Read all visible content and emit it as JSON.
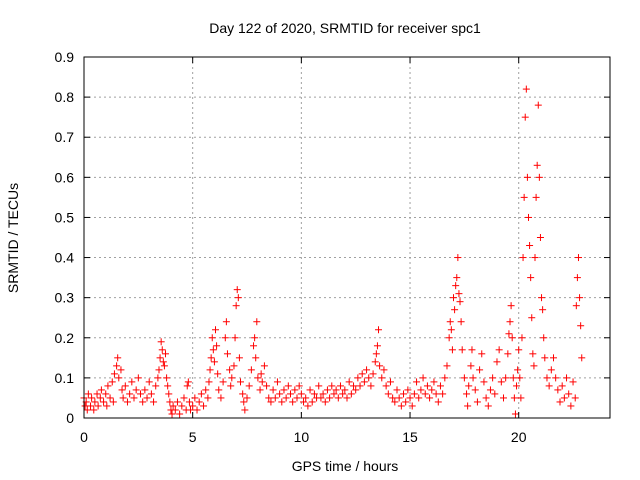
{
  "chart_data": {
    "type": "scatter",
    "title": "Day 122 of 2020, SRMTID for receiver spc1",
    "xlabel": "GPS time / hours",
    "ylabel": "SRMTID / TECUs",
    "xlim": [
      0,
      24.2
    ],
    "ylim": [
      0,
      0.9
    ],
    "xticks": [
      0,
      5,
      10,
      15,
      20
    ],
    "xtick_labels": [
      "0",
      "5",
      "10",
      "15",
      "20"
    ],
    "yticks": [
      0,
      0.1,
      0.2,
      0.3,
      0.4,
      0.5,
      0.6,
      0.7,
      0.8,
      0.9
    ],
    "ytick_labels": [
      "0",
      "0.1",
      "0.2",
      "0.3",
      "0.4",
      "0.5",
      "0.6",
      "0.7",
      "0.8",
      "0.9"
    ],
    "grid": true,
    "marker": "+",
    "marker_color": "#ff0000",
    "series": [
      {
        "name": "spc1",
        "points": [
          [
            0.0,
            0.05
          ],
          [
            0.05,
            0.03
          ],
          [
            0.1,
            0.04
          ],
          [
            0.15,
            0.02
          ],
          [
            0.2,
            0.06
          ],
          [
            0.3,
            0.03
          ],
          [
            0.35,
            0.05
          ],
          [
            0.45,
            0.02
          ],
          [
            0.5,
            0.04
          ],
          [
            0.6,
            0.06
          ],
          [
            0.65,
            0.03
          ],
          [
            0.75,
            0.05
          ],
          [
            0.8,
            0.07
          ],
          [
            0.9,
            0.04
          ],
          [
            1.0,
            0.06
          ],
          [
            1.05,
            0.03
          ],
          [
            1.1,
            0.08
          ],
          [
            1.2,
            0.05
          ],
          [
            1.3,
            0.09
          ],
          [
            1.35,
            0.04
          ],
          [
            1.4,
            0.11
          ],
          [
            1.5,
            0.13
          ],
          [
            1.55,
            0.15
          ],
          [
            1.6,
            0.1
          ],
          [
            1.7,
            0.12
          ],
          [
            1.75,
            0.07
          ],
          [
            1.8,
            0.05
          ],
          [
            1.9,
            0.08
          ],
          [
            2.0,
            0.04
          ],
          [
            2.1,
            0.06
          ],
          [
            2.2,
            0.09
          ],
          [
            2.3,
            0.05
          ],
          [
            2.4,
            0.07
          ],
          [
            2.5,
            0.1
          ],
          [
            2.6,
            0.06
          ],
          [
            2.7,
            0.04
          ],
          [
            2.8,
            0.07
          ],
          [
            2.9,
            0.05
          ],
          [
            3.0,
            0.09
          ],
          [
            3.1,
            0.06
          ],
          [
            3.2,
            0.04
          ],
          [
            3.3,
            0.08
          ],
          [
            3.4,
            0.1
          ],
          [
            3.45,
            0.12
          ],
          [
            3.5,
            0.15
          ],
          [
            3.55,
            0.19
          ],
          [
            3.6,
            0.17
          ],
          [
            3.65,
            0.14
          ],
          [
            3.7,
            0.13
          ],
          [
            3.75,
            0.16
          ],
          [
            3.8,
            0.1
          ],
          [
            3.85,
            0.08
          ],
          [
            3.9,
            0.06
          ],
          [
            3.95,
            0.04
          ],
          [
            4.0,
            0.02
          ],
          [
            4.05,
            0.01
          ],
          [
            4.1,
            0.03
          ],
          [
            4.2,
            0.02
          ],
          [
            4.3,
            0.04
          ],
          [
            4.4,
            0.01
          ],
          [
            4.5,
            0.03
          ],
          [
            4.6,
            0.05
          ],
          [
            4.7,
            0.02
          ],
          [
            4.75,
            0.08
          ],
          [
            4.8,
            0.09
          ],
          [
            4.85,
            0.04
          ],
          [
            4.9,
            0.02
          ],
          [
            5.0,
            0.03
          ],
          [
            5.1,
            0.05
          ],
          [
            5.2,
            0.02
          ],
          [
            5.3,
            0.04
          ],
          [
            5.4,
            0.06
          ],
          [
            5.5,
            0.03
          ],
          [
            5.6,
            0.07
          ],
          [
            5.7,
            0.05
          ],
          [
            5.75,
            0.09
          ],
          [
            5.8,
            0.12
          ],
          [
            5.85,
            0.15
          ],
          [
            5.9,
            0.2
          ],
          [
            5.95,
            0.17
          ],
          [
            6.0,
            0.14
          ],
          [
            6.05,
            0.22
          ],
          [
            6.1,
            0.18
          ],
          [
            6.15,
            0.11
          ],
          [
            6.2,
            0.07
          ],
          [
            6.3,
            0.05
          ],
          [
            6.4,
            0.09
          ],
          [
            6.5,
            0.2
          ],
          [
            6.55,
            0.24
          ],
          [
            6.6,
            0.16
          ],
          [
            6.7,
            0.12
          ],
          [
            6.75,
            0.08
          ],
          [
            6.8,
            0.1
          ],
          [
            6.9,
            0.13
          ],
          [
            6.95,
            0.2
          ],
          [
            7.0,
            0.28
          ],
          [
            7.05,
            0.32
          ],
          [
            7.1,
            0.3
          ],
          [
            7.15,
            0.15
          ],
          [
            7.2,
            0.09
          ],
          [
            7.3,
            0.06
          ],
          [
            7.35,
            0.04
          ],
          [
            7.4,
            0.02
          ],
          [
            7.5,
            0.05
          ],
          [
            7.6,
            0.08
          ],
          [
            7.7,
            0.12
          ],
          [
            7.8,
            0.18
          ],
          [
            7.85,
            0.2
          ],
          [
            7.9,
            0.15
          ],
          [
            7.95,
            0.24
          ],
          [
            8.0,
            0.1
          ],
          [
            8.1,
            0.07
          ],
          [
            8.15,
            0.11
          ],
          [
            8.2,
            0.09
          ],
          [
            8.3,
            0.13
          ],
          [
            8.4,
            0.08
          ],
          [
            8.5,
            0.05
          ],
          [
            8.6,
            0.04
          ],
          [
            8.7,
            0.07
          ],
          [
            8.8,
            0.05
          ],
          [
            8.9,
            0.09
          ],
          [
            9.0,
            0.06
          ],
          [
            9.1,
            0.04
          ],
          [
            9.2,
            0.07
          ],
          [
            9.3,
            0.05
          ],
          [
            9.4,
            0.08
          ],
          [
            9.5,
            0.06
          ],
          [
            9.6,
            0.04
          ],
          [
            9.7,
            0.07
          ],
          [
            9.8,
            0.05
          ],
          [
            9.9,
            0.08
          ],
          [
            10.0,
            0.06
          ],
          [
            10.1,
            0.04
          ],
          [
            10.2,
            0.05
          ],
          [
            10.3,
            0.03
          ],
          [
            10.4,
            0.07
          ],
          [
            10.5,
            0.04
          ],
          [
            10.6,
            0.06
          ],
          [
            10.7,
            0.05
          ],
          [
            10.8,
            0.08
          ],
          [
            10.9,
            0.05
          ],
          [
            11.0,
            0.06
          ],
          [
            11.1,
            0.04
          ],
          [
            11.2,
            0.07
          ],
          [
            11.3,
            0.05
          ],
          [
            11.4,
            0.08
          ],
          [
            11.5,
            0.06
          ],
          [
            11.6,
            0.07
          ],
          [
            11.7,
            0.05
          ],
          [
            11.8,
            0.08
          ],
          [
            11.9,
            0.06
          ],
          [
            12.0,
            0.07
          ],
          [
            12.1,
            0.05
          ],
          [
            12.2,
            0.09
          ],
          [
            12.3,
            0.06
          ],
          [
            12.4,
            0.08
          ],
          [
            12.5,
            0.07
          ],
          [
            12.6,
            0.1
          ],
          [
            12.7,
            0.08
          ],
          [
            12.8,
            0.11
          ],
          [
            12.9,
            0.09
          ],
          [
            13.0,
            0.12
          ],
          [
            13.1,
            0.1
          ],
          [
            13.2,
            0.08
          ],
          [
            13.3,
            0.11
          ],
          [
            13.4,
            0.14
          ],
          [
            13.45,
            0.16
          ],
          [
            13.5,
            0.18
          ],
          [
            13.55,
            0.22
          ],
          [
            13.6,
            0.13
          ],
          [
            13.7,
            0.1
          ],
          [
            13.8,
            0.12
          ],
          [
            13.9,
            0.08
          ],
          [
            14.0,
            0.06
          ],
          [
            14.1,
            0.09
          ],
          [
            14.2,
            0.05
          ],
          [
            14.3,
            0.04
          ],
          [
            14.4,
            0.07
          ],
          [
            14.5,
            0.05
          ],
          [
            14.6,
            0.03
          ],
          [
            14.7,
            0.06
          ],
          [
            14.8,
            0.04
          ],
          [
            14.9,
            0.07
          ],
          [
            15.0,
            0.05
          ],
          [
            15.1,
            0.03
          ],
          [
            15.2,
            0.06
          ],
          [
            15.3,
            0.09
          ],
          [
            15.4,
            0.05
          ],
          [
            15.5,
            0.07
          ],
          [
            15.6,
            0.1
          ],
          [
            15.7,
            0.06
          ],
          [
            15.8,
            0.08
          ],
          [
            15.9,
            0.05
          ],
          [
            16.0,
            0.07
          ],
          [
            16.1,
            0.09
          ],
          [
            16.2,
            0.06
          ],
          [
            16.3,
            0.04
          ],
          [
            16.4,
            0.08
          ],
          [
            16.5,
            0.06
          ],
          [
            16.6,
            0.1
          ],
          [
            16.7,
            0.13
          ],
          [
            16.8,
            0.2
          ],
          [
            16.85,
            0.24
          ],
          [
            16.9,
            0.22
          ],
          [
            16.95,
            0.17
          ],
          [
            17.0,
            0.3
          ],
          [
            17.05,
            0.27
          ],
          [
            17.1,
            0.33
          ],
          [
            17.15,
            0.35
          ],
          [
            17.2,
            0.4
          ],
          [
            17.25,
            0.31
          ],
          [
            17.3,
            0.29
          ],
          [
            17.35,
            0.24
          ],
          [
            17.4,
            0.17
          ],
          [
            17.5,
            0.1
          ],
          [
            17.6,
            0.06
          ],
          [
            17.65,
            0.03
          ],
          [
            17.7,
            0.08
          ],
          [
            17.8,
            0.13
          ],
          [
            17.85,
            0.17
          ],
          [
            17.9,
            0.1
          ],
          [
            18.0,
            0.07
          ],
          [
            18.1,
            0.04
          ],
          [
            18.2,
            0.12
          ],
          [
            18.3,
            0.16
          ],
          [
            18.4,
            0.09
          ],
          [
            18.5,
            0.05
          ],
          [
            18.6,
            0.03
          ],
          [
            18.7,
            0.07
          ],
          [
            18.8,
            0.1
          ],
          [
            18.9,
            0.06
          ],
          [
            19.0,
            0.14
          ],
          [
            19.1,
            0.17
          ],
          [
            19.2,
            0.09
          ],
          [
            19.3,
            0.05
          ],
          [
            19.4,
            0.1
          ],
          [
            19.5,
            0.16
          ],
          [
            19.55,
            0.21
          ],
          [
            19.6,
            0.24
          ],
          [
            19.65,
            0.28
          ],
          [
            19.7,
            0.2
          ],
          [
            19.75,
            0.1
          ],
          [
            19.8,
            0.05
          ],
          [
            19.85,
            0.01
          ],
          [
            19.9,
            0.08
          ],
          [
            19.95,
            0.12
          ],
          [
            20.0,
            0.17
          ],
          [
            20.05,
            0.1
          ],
          [
            20.1,
            0.05
          ],
          [
            20.15,
            0.2
          ],
          [
            20.2,
            0.4
          ],
          [
            20.25,
            0.55
          ],
          [
            20.3,
            0.75
          ],
          [
            20.35,
            0.82
          ],
          [
            20.4,
            0.6
          ],
          [
            20.45,
            0.5
          ],
          [
            20.5,
            0.43
          ],
          [
            20.55,
            0.35
          ],
          [
            20.6,
            0.25
          ],
          [
            20.65,
            0.16
          ],
          [
            20.7,
            0.13
          ],
          [
            20.75,
            0.4
          ],
          [
            20.8,
            0.55
          ],
          [
            20.85,
            0.63
          ],
          [
            20.9,
            0.78
          ],
          [
            20.95,
            0.6
          ],
          [
            21.0,
            0.45
          ],
          [
            21.05,
            0.3
          ],
          [
            21.1,
            0.27
          ],
          [
            21.15,
            0.2
          ],
          [
            21.2,
            0.15
          ],
          [
            21.3,
            0.1
          ],
          [
            21.4,
            0.08
          ],
          [
            21.5,
            0.12
          ],
          [
            21.6,
            0.15
          ],
          [
            21.7,
            0.1
          ],
          [
            21.8,
            0.07
          ],
          [
            21.9,
            0.04
          ],
          [
            22.0,
            0.08
          ],
          [
            22.1,
            0.05
          ],
          [
            22.2,
            0.1
          ],
          [
            22.3,
            0.06
          ],
          [
            22.4,
            0.03
          ],
          [
            22.5,
            0.09
          ],
          [
            22.6,
            0.05
          ],
          [
            22.65,
            0.28
          ],
          [
            22.7,
            0.35
          ],
          [
            22.75,
            0.4
          ],
          [
            22.8,
            0.3
          ],
          [
            22.85,
            0.23
          ],
          [
            22.9,
            0.15
          ]
        ]
      }
    ]
  }
}
